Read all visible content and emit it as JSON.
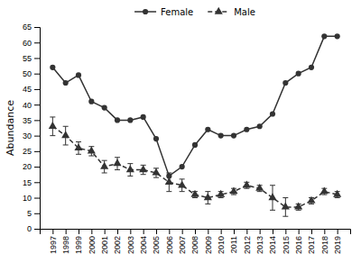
{
  "chart_data": {
    "type": "line",
    "ylabel": "Abundance",
    "x": [
      1997,
      1998,
      1999,
      2000,
      2001,
      2002,
      2003,
      2004,
      2005,
      2006,
      2007,
      2008,
      2009,
      2010,
      2011,
      2012,
      2013,
      2014,
      2015,
      2016,
      2017,
      2018,
      2019
    ],
    "series": [
      {
        "name": "Female",
        "color": "#333333",
        "marker": "circle",
        "line_style": "solid",
        "values": [
          52,
          47,
          49.5,
          41,
          39,
          35,
          35,
          36,
          29,
          17,
          20,
          27,
          32,
          30,
          30,
          32,
          33,
          37,
          47,
          50,
          52,
          62,
          62
        ]
      },
      {
        "name": "Male",
        "color": "#333333",
        "marker": "triangle",
        "line_style": "dashed",
        "values": [
          33,
          30,
          26,
          25,
          20,
          21,
          19,
          19,
          18,
          15,
          14,
          11,
          10,
          11,
          12,
          14,
          13,
          10,
          7,
          7,
          9,
          12,
          11
        ],
        "error_lower": [
          3,
          3,
          2,
          1.5,
          2,
          2,
          2,
          1.5,
          1.5,
          3,
          2,
          1,
          2,
          1,
          1,
          1,
          1,
          4,
          3,
          1,
          1,
          1,
          1
        ],
        "error_upper": [
          3,
          3,
          2,
          1.5,
          2,
          2,
          2,
          1.5,
          1.5,
          3,
          2,
          1,
          2,
          1,
          1,
          1,
          1,
          4,
          3,
          1,
          1,
          1,
          1
        ]
      }
    ],
    "xlim": [
      1996,
      2020
    ],
    "xticks": [
      1997,
      1998,
      1999,
      2000,
      2001,
      2002,
      2003,
      2004,
      2005,
      2006,
      2007,
      2008,
      2009,
      2010,
      2011,
      2012,
      2013,
      2014,
      2015,
      2016,
      2017,
      2018,
      2019
    ],
    "ylim": [
      0,
      65
    ],
    "yticks": [
      0,
      5,
      10,
      15,
      20,
      25,
      30,
      35,
      40,
      45,
      50,
      55,
      60,
      65
    ],
    "legend": "top"
  }
}
